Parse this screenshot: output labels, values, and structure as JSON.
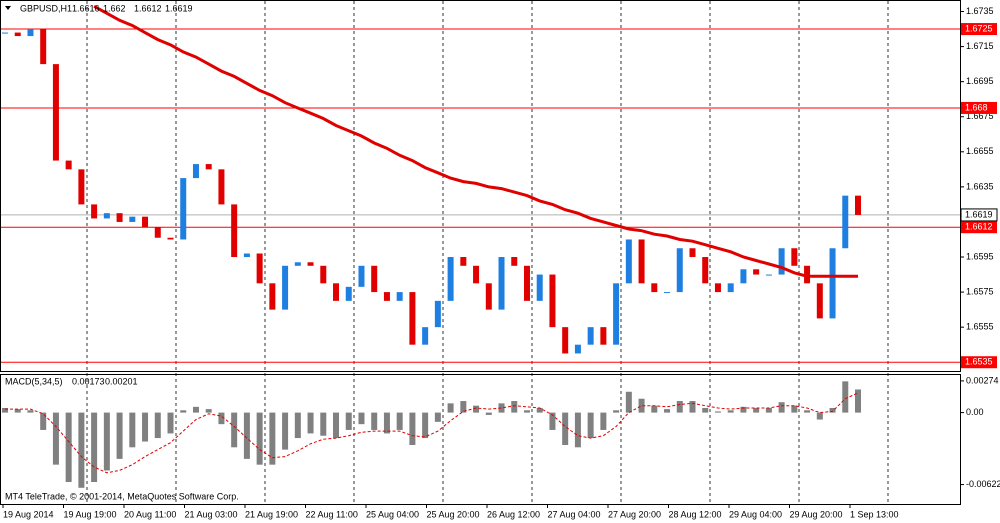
{
  "chart_data": {
    "type": "candlestick",
    "title": "GBPUSD,H1",
    "ohlc": [
      1.6616,
      1.662,
      1.6612,
      1.6619
    ],
    "closes": [
      1.6723,
      1.6721,
      1.6725,
      1.6705,
      1.665,
      1.6645,
      1.6625,
      1.6617,
      1.662,
      1.6615,
      1.6618,
      1.6612,
      1.6606,
      1.6605,
      1.664,
      1.6648,
      1.6645,
      1.6625,
      1.6595,
      1.6597,
      1.658,
      1.6565,
      1.659,
      1.6592,
      1.659,
      1.658,
      1.657,
      1.6578,
      1.659,
      1.6575,
      1.657,
      1.6575,
      1.6545,
      1.6555,
      1.657,
      1.6595,
      1.659,
      1.658,
      1.6565,
      1.6595,
      1.659,
      1.657,
      1.6585,
      1.6555,
      1.654,
      1.6545,
      1.6555,
      1.6545,
      1.658,
      1.6605,
      1.658,
      1.6575,
      1.6575,
      1.66,
      1.6595,
      1.658,
      1.6575,
      1.658,
      1.6588,
      1.6585,
      1.6585,
      1.66,
      1.659,
      1.658,
      1.656,
      1.66,
      1.663,
      1.6619
    ],
    "ma_values": [
      null,
      null,
      null,
      null,
      null,
      null,
      null,
      1.6738,
      1.6734,
      1.673,
      1.6727,
      1.6723,
      1.6719,
      1.6716,
      1.6712,
      1.6709,
      1.6705,
      1.6701,
      1.6698,
      1.6694,
      1.669,
      1.6687,
      1.6683,
      1.668,
      1.6677,
      1.6674,
      1.667,
      1.6667,
      1.6664,
      1.666,
      1.6657,
      1.6653,
      1.665,
      1.6646,
      1.6643,
      1.664,
      1.6638,
      1.6637,
      1.6635,
      1.6634,
      1.6632,
      1.663,
      1.6627,
      1.6625,
      1.6622,
      1.662,
      1.6617,
      1.6615,
      1.6613,
      1.6611,
      1.661,
      1.6608,
      1.6607,
      1.6605,
      1.6604,
      1.6602,
      1.66,
      1.6598,
      1.6595,
      1.6593,
      1.6591,
      1.6589,
      1.6586,
      1.6584,
      1.6584,
      1.6584,
      1.6584,
      1.6584
    ],
    "ma_color": "#e00000",
    "up_color": "#1e7fe0",
    "down_color": "#e00000",
    "ylim": [
      1.653,
      1.6741
    ],
    "yticks": [
      1.6735,
      1.6715,
      1.6695,
      1.6675,
      1.6655,
      1.6635,
      1.6615,
      1.6595,
      1.6575,
      1.6555,
      1.6535
    ],
    "levels": [
      1.6725,
      1.668,
      1.6612,
      1.6535
    ],
    "level_color": "#ff0000",
    "last_price": 1.6619,
    "x_labels": [
      "19 Aug 2014",
      "19 Aug 19:00",
      "20 Aug 11:00",
      "21 Aug 03:00",
      "21 Aug 19:00",
      "22 Aug 11:00",
      "25 Aug 04:00",
      "25 Aug 20:00",
      "26 Aug 12:00",
      "27 Aug 04:00",
      "27 Aug 20:00",
      "28 Aug 12:00",
      "29 Aug 04:00",
      "29 Aug 20:00",
      "1 Sep 13:00"
    ],
    "macd": {
      "title": "MACD(5,34,5)",
      "current": [
        0.00173,
        0.00201
      ],
      "histogram": [
        0.0004,
        0.0003,
        0.0002,
        -0.0015,
        -0.0045,
        -0.006,
        -0.0065,
        -0.006,
        -0.005,
        -0.004,
        -0.003,
        -0.0025,
        -0.0022,
        -0.0018,
        0.0002,
        0.0005,
        0.0003,
        -0.001,
        -0.003,
        -0.004,
        -0.0045,
        -0.0045,
        -0.0032,
        -0.0022,
        -0.0018,
        -0.002,
        -0.0022,
        -0.0015,
        -0.001,
        -0.0015,
        -0.0018,
        -0.0015,
        -0.0028,
        -0.0022,
        -0.0008,
        0.0008,
        0.001,
        0.0006,
        -0.0002,
        0.0008,
        0.001,
        0.0002,
        0.0004,
        -0.0015,
        -0.0028,
        -0.003,
        -0.0022,
        -0.0015,
        0.0002,
        0.0018,
        0.0012,
        0.0006,
        0.0003,
        0.001,
        0.001,
        0.0004,
        0.0001,
        0.0002,
        0.0005,
        0.0004,
        0.0004,
        0.0009,
        0.0006,
        0.0002,
        -0.0006,
        0.0004,
        0.0027,
        0.002
      ],
      "signal": [
        0.0003,
        0.0003,
        0.0003,
        -0.0001,
        -0.0012,
        -0.0025,
        -0.0038,
        -0.0047,
        -0.0052,
        -0.005,
        -0.0045,
        -0.0038,
        -0.0032,
        -0.0026,
        -0.0016,
        -0.0006,
        -0.0001,
        -0.0003,
        -0.0012,
        -0.0022,
        -0.0032,
        -0.0039,
        -0.0038,
        -0.0033,
        -0.0027,
        -0.0023,
        -0.0022,
        -0.002,
        -0.0017,
        -0.0016,
        -0.0016,
        -0.0016,
        -0.002,
        -0.0021,
        -0.0016,
        -0.0007,
        0.0001,
        0.0004,
        0.0003,
        0.0004,
        0.0006,
        0.0005,
        0.0004,
        -0.0002,
        -0.0012,
        -0.002,
        -0.0022,
        -0.002,
        -0.0012,
        0.0,
        0.0006,
        0.0006,
        0.0005,
        0.0007,
        0.0008,
        0.0006,
        0.0004,
        0.0003,
        0.0004,
        0.0004,
        0.0004,
        0.0006,
        0.0006,
        0.0004,
        0.0,
        0.0001,
        0.0012,
        0.0017
      ],
      "histogram_color": "#808080",
      "signal_color": "#e00000",
      "ylim": [
        -0.0079,
        0.00325
      ],
      "yticks": [
        0.00274,
        {
          "value": 0,
          "label": "0.00"
        },
        -0.00622
      ]
    },
    "footer": "MT4 TeleTrade, © 2001-2014, MetaQuotes Software Corp."
  }
}
